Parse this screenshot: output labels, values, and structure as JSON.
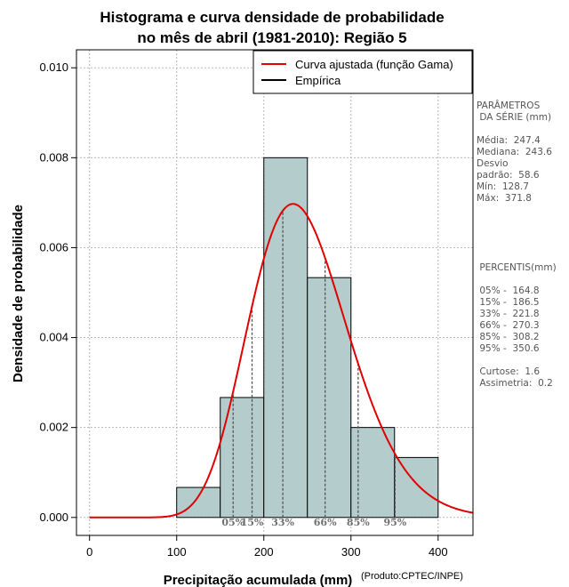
{
  "chart_data": {
    "type": "histogram",
    "title_line1": "Histograma e curva densidade de probabilidade",
    "title_line2": "no mês de abril (1981-2010): Região 5",
    "xlabel": "Precipitação acumulada (mm)",
    "ylabel": "Densidade de probabilidade",
    "credit": "(Produto:CPTEC/INPE)",
    "xlim": [
      -15,
      440
    ],
    "ylim": [
      -0.0004,
      0.0104
    ],
    "x_ticks": [
      0,
      100,
      200,
      300,
      400
    ],
    "y_ticks": [
      "0.000",
      "0.002",
      "0.004",
      "0.006",
      "0.008",
      "0.010"
    ],
    "grid": true,
    "bins": [
      {
        "x0": 100,
        "x1": 150,
        "density": 0.000667
      },
      {
        "x0": 150,
        "x1": 200,
        "density": 0.002667
      },
      {
        "x0": 200,
        "x1": 250,
        "density": 0.008
      },
      {
        "x0": 250,
        "x1": 300,
        "density": 0.005333
      },
      {
        "x0": 300,
        "x1": 350,
        "density": 0.002
      },
      {
        "x0": 350,
        "x1": 400,
        "density": 0.001333
      }
    ],
    "fitted_curve": {
      "distribution": "gamma",
      "mean": 247.4,
      "sd": 58.6,
      "color": "#e00000"
    },
    "percentile_marks": [
      {
        "label": "05%",
        "value": 164.8
      },
      {
        "label": "15%",
        "value": 186.5
      },
      {
        "label": "33%",
        "value": 221.8
      },
      {
        "label": "66%",
        "value": 270.3
      },
      {
        "label": "85%",
        "value": 308.2
      },
      {
        "label": "95%",
        "value": 350.6
      }
    ],
    "legend": {
      "position": "top-right",
      "entries": [
        {
          "label": "Curva ajustada (função Gama)",
          "color": "#e00000"
        },
        {
          "label": "Empírica",
          "color": "#000000"
        }
      ]
    },
    "bar_color": "#b4cccc"
  },
  "side": {
    "params_title_1": "PARÂMETROS",
    "params_title_2": " DA SÉRIE (mm)",
    "media": "Média:  247.4",
    "mediana": "Mediana:  243.6",
    "desvio_1": "Desvio",
    "desvio_2": "padrão:  58.6",
    "min": "Mín:  128.7",
    "max": "Máx:  371.8",
    "pct_title": " PERCENTIS(mm)",
    "p05": " 05% -  164.8",
    "p15": " 15% -  186.5",
    "p33": " 33% -  221.8",
    "p66": " 66% -  270.3",
    "p85": " 85% -  308.2",
    "p95": " 95% -  350.6",
    "curtose": " Curtose:  1.6",
    "assimetria": " Assimetria:  0.2"
  }
}
